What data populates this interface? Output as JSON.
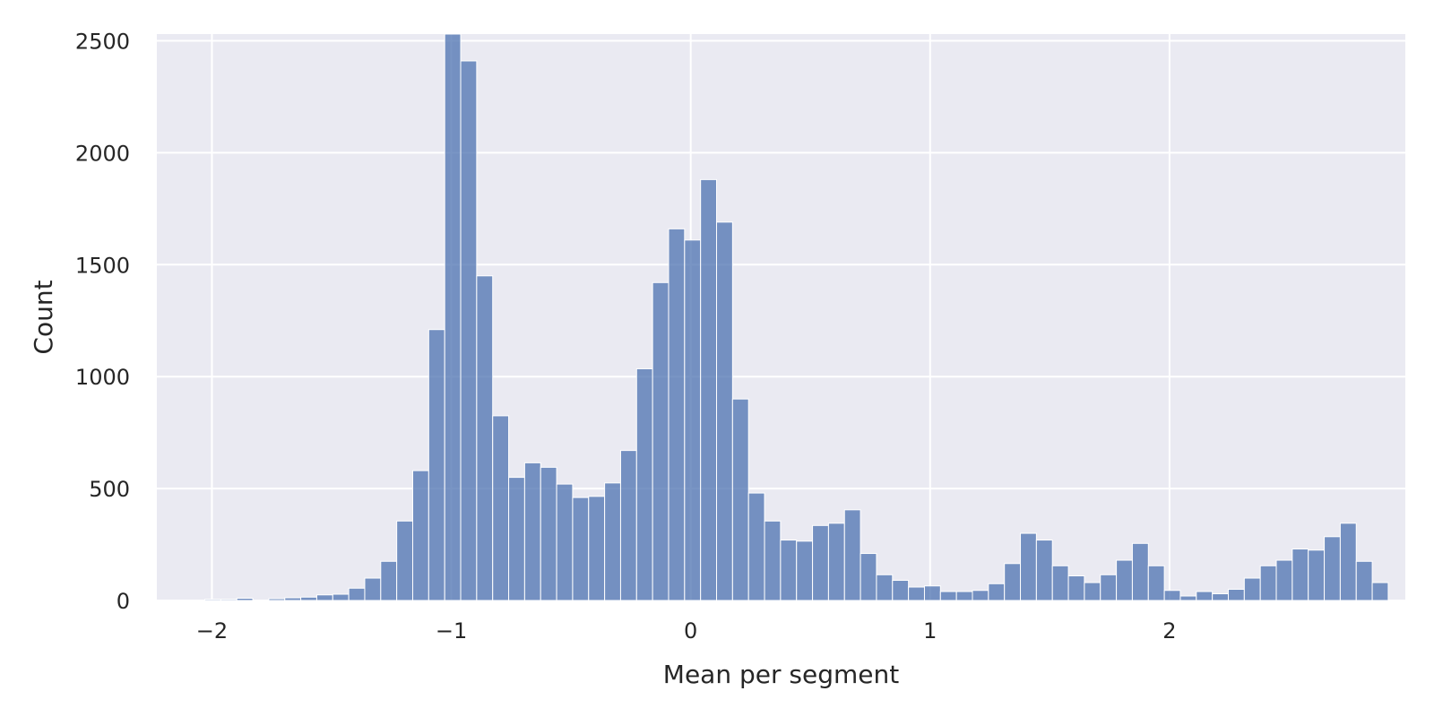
{
  "chart_data": {
    "type": "bar",
    "title": "",
    "xlabel": "Mean per segment",
    "ylabel": "Count",
    "xlim": [
      -2.23,
      2.985
    ],
    "ylim": [
      0,
      2530
    ],
    "grid": true,
    "background_color": "#eaeaf2",
    "bar_color": "#4c72b0",
    "x_ticks": [
      -2,
      -1,
      0,
      1,
      2
    ],
    "x_tick_labels": [
      "−2",
      "−1",
      "0",
      "1",
      "2"
    ],
    "y_ticks": [
      0,
      500,
      1000,
      1500,
      2000,
      2500
    ],
    "y_tick_labels": [
      "0",
      "500",
      "1000",
      "1500",
      "2000",
      "2500"
    ],
    "bins": {
      "start": -2.23,
      "width": 0.0668,
      "counts": [
        0,
        0,
        0,
        5,
        5,
        10,
        0,
        8,
        12,
        15,
        25,
        28,
        55,
        100,
        175,
        355,
        580,
        1210,
        2540,
        2410,
        1450,
        825,
        550,
        615,
        595,
        520,
        460,
        465,
        525,
        670,
        1035,
        1420,
        1660,
        1610,
        1880,
        1690,
        900,
        480,
        355,
        270,
        265,
        335,
        345,
        405,
        210,
        115,
        90,
        60,
        65,
        40,
        40,
        45,
        75,
        165,
        300,
        270,
        155,
        110,
        80,
        115,
        180,
        255,
        155,
        45,
        20,
        40,
        30,
        50,
        100,
        155,
        180,
        230,
        225,
        285,
        345,
        175,
        80
      ]
    }
  }
}
